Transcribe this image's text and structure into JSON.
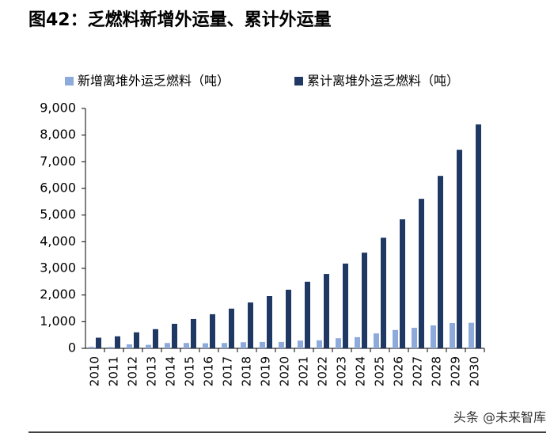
{
  "chart_data": {
    "type": "bar",
    "title": "图42：乏燃料新增外运量、累计外运量",
    "categories": [
      "2010",
      "2011",
      "2012",
      "2013",
      "2014",
      "2015",
      "2016",
      "2017",
      "2018",
      "2019",
      "2020",
      "2021",
      "2022",
      "2023",
      "2024",
      "2025",
      "2026",
      "2027",
      "2028",
      "2029",
      "2030"
    ],
    "series": [
      {
        "name": "新增离堆外运乏燃料（吨）",
        "color": "#8eaadb",
        "values": [
          60,
          50,
          150,
          130,
          200,
          200,
          190,
          200,
          230,
          240,
          240,
          290,
          300,
          380,
          420,
          560,
          690,
          770,
          860,
          950,
          960
        ]
      },
      {
        "name": "累计离堆外运乏燃料（吨）",
        "color": "#1f3864",
        "values": [
          400,
          450,
          600,
          720,
          920,
          1100,
          1280,
          1490,
          1720,
          1960,
          2200,
          2500,
          2790,
          3180,
          3590,
          4150,
          4840,
          5610,
          6470,
          7450,
          8400
        ]
      }
    ],
    "ylim": [
      0,
      9000
    ],
    "yticks": [
      0,
      {
        "value": 1000,
        "label": "1,000"
      },
      {
        "value": 2000,
        "label": "2,000"
      },
      {
        "value": 3000,
        "label": "3,000"
      },
      {
        "value": 4000,
        "label": "4,000"
      },
      {
        "value": 5000,
        "label": "5,000"
      },
      {
        "value": 6000,
        "label": "6,000"
      },
      {
        "value": 7000,
        "label": "7,000"
      },
      {
        "value": 8000,
        "label": "8,000"
      },
      {
        "value": 9000,
        "label": "9,000"
      }
    ],
    "grid": false,
    "legend": "top",
    "watermark": "头条 @未来智库"
  }
}
